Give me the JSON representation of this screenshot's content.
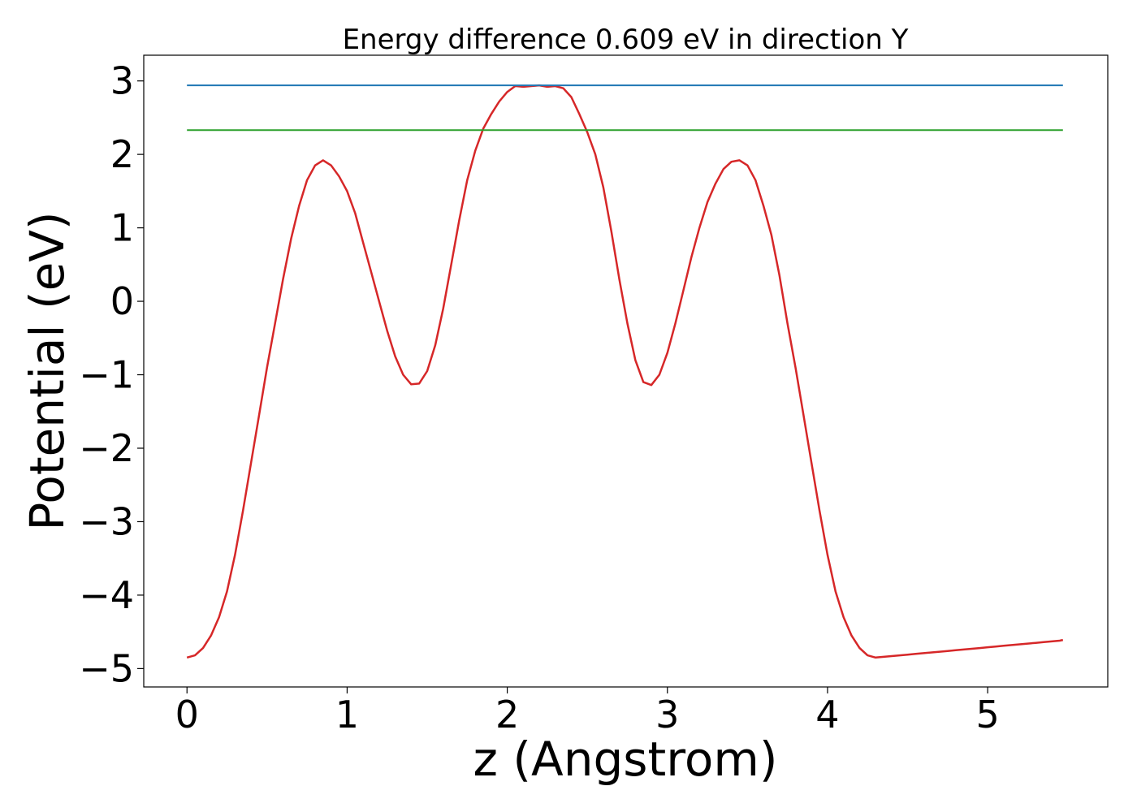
{
  "chart_data": {
    "type": "line",
    "title": "Energy difference 0.609 eV in direction Y",
    "xlabel": "z (Angstrom)",
    "ylabel": "Potential (eV)",
    "xlim": [
      -0.27,
      5.75
    ],
    "ylim": [
      -5.25,
      3.35
    ],
    "x_ticks": [
      0,
      1,
      2,
      3,
      4,
      5
    ],
    "x_tick_labels": [
      "0",
      "1",
      "2",
      "3",
      "4",
      "5"
    ],
    "y_ticks": [
      3,
      2,
      1,
      0,
      -1,
      -2,
      -3,
      -4,
      -5
    ],
    "y_tick_labels": [
      "3",
      "2",
      "1",
      "0",
      "−1",
      "−2",
      "−3",
      "−4",
      "−5"
    ],
    "grid": false,
    "series": [
      {
        "color": "#d62728",
        "x": [
          0,
          0.05,
          0.1,
          0.15,
          0.2,
          0.25,
          0.3,
          0.35,
          0.4,
          0.45,
          0.5,
          0.55,
          0.6,
          0.65,
          0.7,
          0.75,
          0.8,
          0.85,
          0.9,
          0.95,
          1.0,
          1.05,
          1.1,
          1.15,
          1.2,
          1.25,
          1.3,
          1.35,
          1.4,
          1.45,
          1.5,
          1.55,
          1.6,
          1.65,
          1.7,
          1.75,
          1.8,
          1.85,
          1.9,
          1.95,
          2.0,
          2.05,
          2.1,
          2.15,
          2.2,
          2.25,
          2.3,
          2.35,
          2.4,
          2.45,
          2.5,
          2.55,
          2.6,
          2.65,
          2.7,
          2.75,
          2.8,
          2.85,
          2.9,
          2.95,
          3.0,
          3.05,
          3.1,
          3.15,
          3.2,
          3.25,
          3.3,
          3.35,
          3.4,
          3.45,
          3.5,
          3.55,
          3.6,
          3.65,
          3.7,
          3.75,
          3.8,
          3.85,
          3.9,
          3.95,
          4.0,
          4.05,
          4.1,
          4.15,
          4.2,
          4.25,
          4.3,
          4.35,
          4.4,
          4.45,
          4.5,
          4.55,
          4.6,
          4.65,
          4.7,
          4.75,
          4.8,
          4.85,
          4.9,
          4.95,
          5.0,
          5.05,
          5.1,
          5.15,
          5.2,
          5.25,
          5.3,
          5.35,
          5.4,
          5.45,
          5.47
        ],
        "y": [
          -4.85,
          -4.82,
          -4.72,
          -4.55,
          -4.3,
          -3.95,
          -3.45,
          -2.85,
          -2.2,
          -1.55,
          -0.9,
          -0.3,
          0.3,
          0.85,
          1.3,
          1.65,
          1.85,
          1.92,
          1.85,
          1.7,
          1.5,
          1.2,
          0.8,
          0.4,
          0.0,
          -0.4,
          -0.75,
          -1.0,
          -1.13,
          -1.12,
          -0.95,
          -0.6,
          -0.1,
          0.5,
          1.1,
          1.65,
          2.05,
          2.35,
          2.55,
          2.72,
          2.85,
          2.93,
          2.92,
          2.93,
          2.94,
          2.92,
          2.93,
          2.9,
          2.78,
          2.55,
          2.3,
          2.0,
          1.55,
          0.95,
          0.3,
          -0.3,
          -0.8,
          -1.1,
          -1.14,
          -1.0,
          -0.7,
          -0.3,
          0.15,
          0.6,
          1.0,
          1.35,
          1.6,
          1.8,
          1.9,
          1.92,
          1.85,
          1.65,
          1.3,
          0.9,
          0.35,
          -0.3,
          -0.9,
          -1.55,
          -2.2,
          -2.85,
          -3.45,
          -3.95,
          -4.3,
          -4.55,
          -4.72,
          -4.82,
          -4.85,
          -4.84,
          -4.83,
          -4.82,
          -4.81,
          -4.8,
          -4.79,
          -4.78,
          -4.77,
          -4.76,
          -4.75,
          -4.74,
          -4.73,
          -4.72,
          -4.71,
          -4.7,
          -4.69,
          -4.68,
          -4.67,
          -4.66,
          -4.65,
          -4.64,
          -4.63,
          -4.62,
          -4.61
        ]
      },
      {
        "color": "#1f77b4",
        "x": [
          0,
          5.47
        ],
        "y": [
          2.94,
          2.94
        ]
      },
      {
        "color": "#2ca02c",
        "x": [
          0,
          5.47
        ],
        "y": [
          2.33,
          2.33
        ]
      }
    ]
  }
}
